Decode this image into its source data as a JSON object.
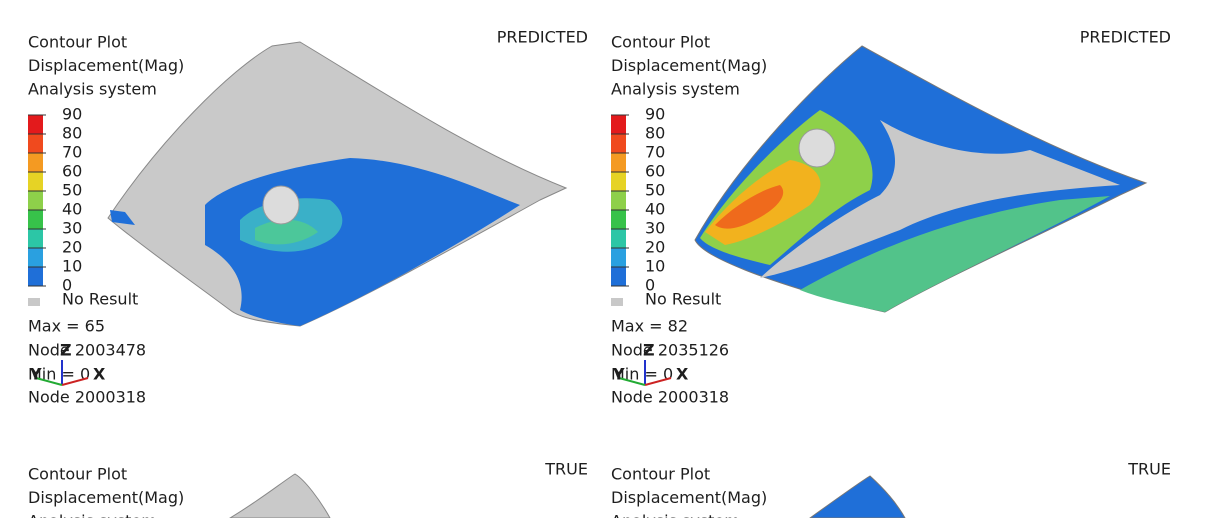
{
  "panels": [
    {
      "label": "PREDICTED",
      "lines": [
        "Contour Plot",
        "Displacement(Mag)",
        "Analysis system"
      ],
      "legend": [
        90,
        80,
        70,
        60,
        50,
        40,
        30,
        20,
        10,
        0
      ],
      "no_result": "No Result",
      "max": "Max = 65",
      "max_node": "Node 2003478",
      "min": "Min = 0",
      "min_node": "Node 2000318",
      "axes": [
        "Z",
        "X",
        "Y"
      ]
    },
    {
      "label": "PREDICTED",
      "lines": [
        "Contour Plot",
        "Displacement(Mag)",
        "Analysis system"
      ],
      "legend": [
        90,
        80,
        70,
        60,
        50,
        40,
        30,
        20,
        10,
        0
      ],
      "no_result": "No Result",
      "max": "Max = 82",
      "max_node": "Node 2035126",
      "min": "Min = 0",
      "min_node": "Node 2000318",
      "axes": [
        "Z",
        "X",
        "Y"
      ]
    },
    {
      "label": "TRUE",
      "lines": [
        "Contour Plot",
        "Displacement(Mag)",
        "Analysis system"
      ]
    },
    {
      "label": "TRUE",
      "lines": [
        "Contour Plot",
        "Displacement(Mag)",
        "Analysis system"
      ]
    }
  ]
}
